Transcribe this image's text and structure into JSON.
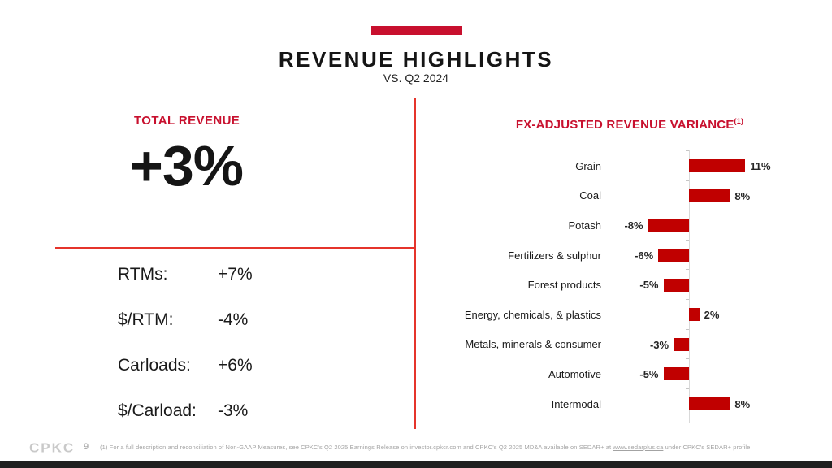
{
  "slide": {
    "title": "REVENUE HIGHLIGHTS",
    "subtitle": "VS. Q2 2024",
    "accent_color": "#C8102E"
  },
  "left_panel": {
    "header": "TOTAL REVENUE",
    "big_value": "+3%",
    "metrics": [
      {
        "label": "RTMs:",
        "value": "+7%"
      },
      {
        "label": "$/RTM:",
        "value": "-4%"
      },
      {
        "label": "Carloads:",
        "value": "+6%"
      },
      {
        "label": "$/Carload:",
        "value": "-3%"
      }
    ]
  },
  "right_panel": {
    "header": "FX-ADJUSTED REVENUE VARIANCE",
    "header_superscript": "(1)"
  },
  "chart_data": {
    "type": "bar",
    "orientation": "horizontal",
    "title": "FX-ADJUSTED REVENUE VARIANCE (1)",
    "categories": [
      "Grain",
      "Coal",
      "Potash",
      "Fertilizers & sulphur",
      "Forest products",
      "Energy, chemicals, & plastics",
      "Metals, minerals & consumer",
      "Automotive",
      "Intermodal"
    ],
    "values": [
      11,
      8,
      -8,
      -6,
      -5,
      2,
      -3,
      -5,
      8
    ],
    "value_labels": [
      "11%",
      "8%",
      "-8%",
      "-6%",
      "-5%",
      "2%",
      "-3%",
      "-5%",
      "8%"
    ],
    "unit": "%",
    "xlim": [
      -10,
      13
    ],
    "grid": false,
    "legend": "none",
    "bar_color": "#C00000",
    "axis_color": "#D9D9D9"
  },
  "footer": {
    "logo": "CPKC",
    "page_number": "9",
    "footnote_pre": "(1) For a full description and reconciliation of Non-GAAP Measures, see CPKC's Q2 2025 Earnings Release on investor.cpkcr.com and CPKC's Q2 2025 MD&A available on SEDAR+ at ",
    "footnote_link": "www.sedarplus.ca",
    "footnote_post": " under CPKC's SEDAR+ profile"
  }
}
